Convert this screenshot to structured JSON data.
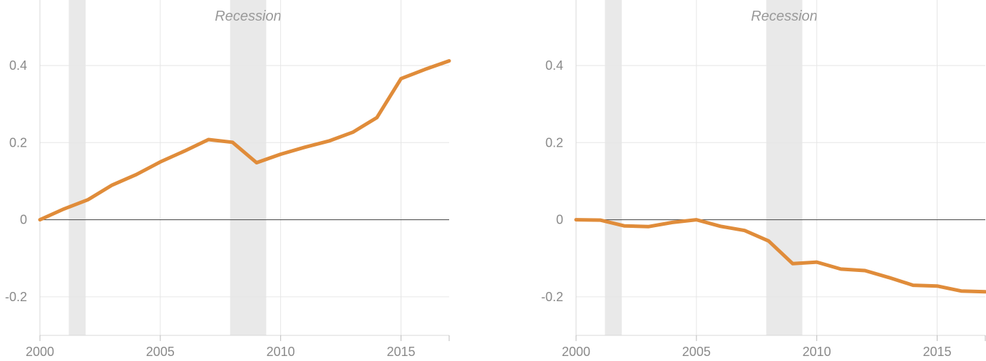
{
  "chart_data": [
    {
      "type": "line",
      "title": "",
      "xlabel": "",
      "ylabel": "",
      "xlim": [
        2000,
        2017
      ],
      "ylim": [
        -0.3,
        0.57
      ],
      "x_ticks": [
        2000,
        2005,
        2010,
        2015
      ],
      "x_tick_labels": [
        "2000",
        "2005",
        "2010",
        "2015"
      ],
      "y_ticks": [
        -0.2,
        0,
        0.2,
        0.4
      ],
      "y_tick_labels": [
        "-0.2",
        "0",
        "0.2",
        "0.4"
      ],
      "grid": true,
      "recessions": [
        [
          2001.2,
          2001.9
        ],
        [
          2007.9,
          2009.4
        ]
      ],
      "recession_label": "Recession",
      "series": [
        {
          "color": "#e08c3a",
          "x": [
            2000,
            2001,
            2002,
            2003,
            2004,
            2005,
            2006,
            2007,
            2008,
            2009,
            2010,
            2011,
            2012,
            2013,
            2014,
            2015,
            2016,
            2017
          ],
          "values": [
            0.0,
            0.028,
            0.052,
            0.09,
            0.117,
            0.15,
            0.178,
            0.208,
            0.201,
            0.148,
            0.17,
            0.188,
            0.204,
            0.227,
            0.265,
            0.366,
            0.39,
            0.412
          ]
        }
      ]
    },
    {
      "type": "line",
      "title": "",
      "xlabel": "",
      "ylabel": "",
      "xlim": [
        2000,
        2017
      ],
      "ylim": [
        -0.3,
        0.57
      ],
      "x_ticks": [
        2000,
        2005,
        2010,
        2015
      ],
      "x_tick_labels": [
        "2000",
        "2005",
        "2010",
        "2015"
      ],
      "y_ticks": [
        -0.2,
        0,
        0.2,
        0.4
      ],
      "y_tick_labels": [
        "-0.2",
        "0",
        "0.2",
        "0.4"
      ],
      "grid": true,
      "recessions": [
        [
          2001.2,
          2001.9
        ],
        [
          2007.9,
          2009.4
        ]
      ],
      "recession_label": "Recession",
      "series": [
        {
          "color": "#e08c3a",
          "x": [
            2000,
            2001,
            2002,
            2003,
            2004,
            2005,
            2006,
            2007,
            2008,
            2009,
            2010,
            2011,
            2012,
            2013,
            2014,
            2015,
            2016,
            2017
          ],
          "values": [
            0.0,
            -0.001,
            -0.016,
            -0.018,
            -0.007,
            0.0,
            -0.017,
            -0.028,
            -0.055,
            -0.114,
            -0.11,
            -0.128,
            -0.132,
            -0.15,
            -0.17,
            -0.172,
            -0.185,
            -0.187
          ]
        }
      ]
    }
  ]
}
